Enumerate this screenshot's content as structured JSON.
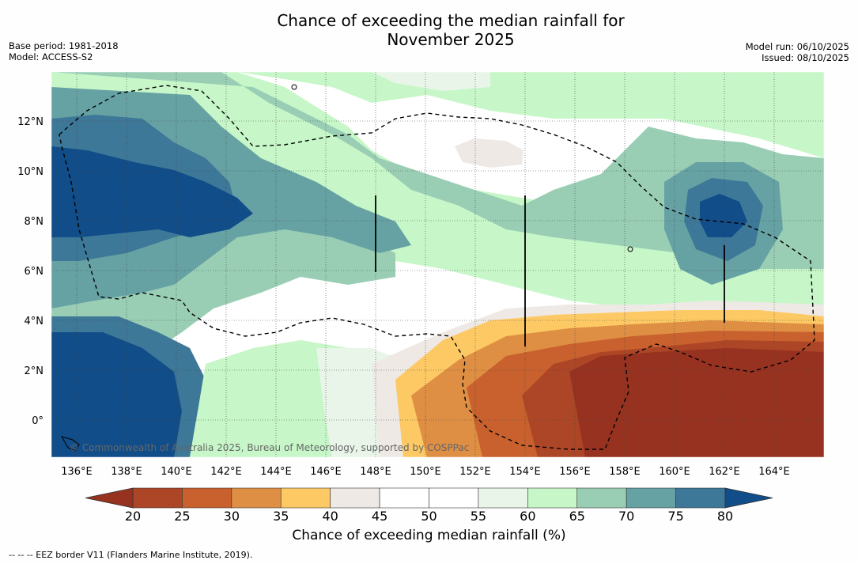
{
  "title_line1": "Chance of exceeding the median rainfall for",
  "title_line2": "November 2025",
  "meta_left": {
    "base_period": "Base period: 1981-2018",
    "model": "Model: ACCESS-S2"
  },
  "meta_right": {
    "model_run": "Model run: 06/10/2025",
    "issued": "Issued: 08/10/2025"
  },
  "map": {
    "lon_labels": [
      "136°E",
      "138°E",
      "140°E",
      "142°E",
      "144°E",
      "146°E",
      "148°E",
      "150°E",
      "152°E",
      "154°E",
      "156°E",
      "158°E",
      "160°E",
      "162°E",
      "164°E"
    ],
    "lat_labels": [
      "12°N",
      "10°N",
      "8°N",
      "6°N",
      "4°N",
      "2°N",
      "0°"
    ],
    "copyright": "© Commonwealth of Australia 2025, Bureau of Meteorology, supported by COSPPac",
    "layer_icon": "rainfall-probability-contour-layer"
  },
  "colorbar": {
    "ticks": [
      "20",
      "25",
      "30",
      "35",
      "40",
      "45",
      "50",
      "55",
      "60",
      "65",
      "70",
      "75",
      "80"
    ],
    "colors": [
      "#ad4626",
      "#c9612f",
      "#df8f43",
      "#fdc964",
      "#eee9e5",
      "#ffffff",
      "#ffffff",
      "#e9f5e9",
      "#c7f7c8",
      "#99ceb5",
      "#66a2a3",
      "#3e7898"
    ],
    "under_color": "#973220",
    "over_color": "#114d88",
    "label": "Chance of exceeding median rainfall (%)"
  },
  "footnote": "--  --  -- EEZ border V11 (Flanders Marine Institute, 2019)."
}
